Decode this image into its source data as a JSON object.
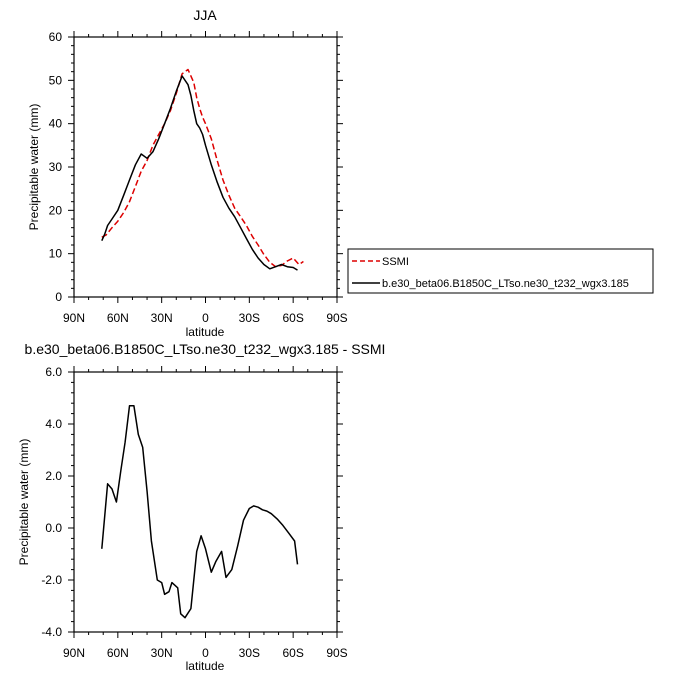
{
  "chart_data": [
    {
      "type": "line",
      "title": "JJA",
      "xlabel": "latitude",
      "ylabel": "Precipitable water (mm)",
      "xlim": [
        90,
        -90
      ],
      "ylim": [
        0,
        60
      ],
      "x_ticks": [
        90,
        60,
        30,
        0,
        -30,
        -60,
        -90
      ],
      "x_tick_labels": [
        "90N",
        "60N",
        "30N",
        "0",
        "30S",
        "60S",
        "90S"
      ],
      "y_ticks": [
        0,
        10,
        20,
        30,
        40,
        50,
        60
      ],
      "y_tick_labels": [
        "0",
        "10",
        "20",
        "30",
        "40",
        "50",
        "60"
      ],
      "legend_position": "right-outside",
      "series": [
        {
          "name": "SSMI",
          "color": "#dd0000",
          "style": "dashed",
          "x": [
            71,
            68,
            64,
            60,
            56,
            52,
            48,
            44,
            40,
            36,
            32,
            28,
            24,
            20,
            16,
            12,
            8,
            6,
            4,
            2,
            0,
            -4,
            -8,
            -12,
            -16,
            -20,
            -24,
            -28,
            -32,
            -36,
            -40,
            -44,
            -48,
            -52,
            -56,
            -60,
            -64,
            -67
          ],
          "values": [
            13.8,
            14.3,
            16.0,
            17.5,
            19.5,
            22.0,
            25.5,
            29.0,
            31.5,
            35.0,
            37.5,
            40.0,
            43.0,
            47.0,
            51.5,
            52.5,
            49.5,
            46.0,
            43.5,
            41.5,
            40.0,
            36.5,
            31.5,
            27.0,
            23.5,
            20.5,
            18.5,
            16.5,
            14.0,
            12.0,
            9.8,
            8.0,
            7.0,
            7.3,
            8.3,
            9.0,
            7.5,
            8.2
          ]
        },
        {
          "name": "b.e30_beta06.B1850C_LTso.ne30_t232_wgx3.185",
          "color": "#000000",
          "style": "solid",
          "x": [
            71,
            69,
            67,
            64,
            60,
            56,
            52,
            48,
            44,
            40,
            36,
            32,
            28,
            24,
            20,
            16,
            12,
            10,
            8,
            6,
            4,
            2,
            0,
            -4,
            -8,
            -12,
            -16,
            -20,
            -24,
            -28,
            -32,
            -36,
            -40,
            -44,
            -48,
            -52,
            -56,
            -60,
            -63
          ],
          "values": [
            13.0,
            14.5,
            16.5,
            18.0,
            20.0,
            23.5,
            27.0,
            30.5,
            33.0,
            32.0,
            33.5,
            36.5,
            40.0,
            43.5,
            47.5,
            51.0,
            49.0,
            46.5,
            43.0,
            40.0,
            39.0,
            37.5,
            35.0,
            30.5,
            26.5,
            23.0,
            20.5,
            18.5,
            16.0,
            13.5,
            11.0,
            9.0,
            7.5,
            6.5,
            7.0,
            7.5,
            7.0,
            6.8,
            6.2
          ]
        }
      ]
    },
    {
      "type": "line",
      "title": "b.e30_beta06.B1850C_LTso.ne30_t232_wgx3.185 - SSMI",
      "xlabel": "latitude",
      "ylabel": "Precipitable water (mm)",
      "xlim": [
        90,
        -90
      ],
      "ylim": [
        -4,
        6
      ],
      "x_ticks": [
        90,
        60,
        30,
        0,
        -30,
        -60,
        -90
      ],
      "x_tick_labels": [
        "90N",
        "60N",
        "30N",
        "0",
        "30S",
        "60S",
        "90S"
      ],
      "y_ticks": [
        -4,
        -2,
        0,
        2,
        4,
        6
      ],
      "y_tick_labels": [
        "-4.0",
        "-2.0",
        "0.0",
        "2.0",
        "4.0",
        "6.0"
      ],
      "series": [
        {
          "color": "#000000",
          "style": "solid",
          "x": [
            71,
            67,
            64,
            61,
            58,
            55,
            52,
            49,
            46,
            43,
            40,
            37,
            33,
            30,
            28,
            25,
            23,
            19,
            17,
            14,
            10,
            6,
            3,
            0,
            -4,
            -7,
            -11,
            -14,
            -18,
            -22,
            -26,
            -30,
            -33,
            -36,
            -39,
            -42,
            -45,
            -49,
            -53,
            -57,
            -61,
            -63
          ],
          "values": [
            -0.8,
            1.7,
            1.5,
            1.0,
            2.2,
            3.3,
            4.7,
            4.7,
            3.6,
            3.1,
            1.4,
            -0.5,
            -2.0,
            -2.1,
            -2.55,
            -2.45,
            -2.1,
            -2.3,
            -3.3,
            -3.45,
            -3.1,
            -0.9,
            -0.3,
            -0.8,
            -1.7,
            -1.3,
            -0.9,
            -1.9,
            -1.6,
            -0.7,
            0.3,
            0.75,
            0.85,
            0.8,
            0.7,
            0.65,
            0.55,
            0.35,
            0.1,
            -0.2,
            -0.5,
            -1.4
          ]
        }
      ]
    }
  ]
}
